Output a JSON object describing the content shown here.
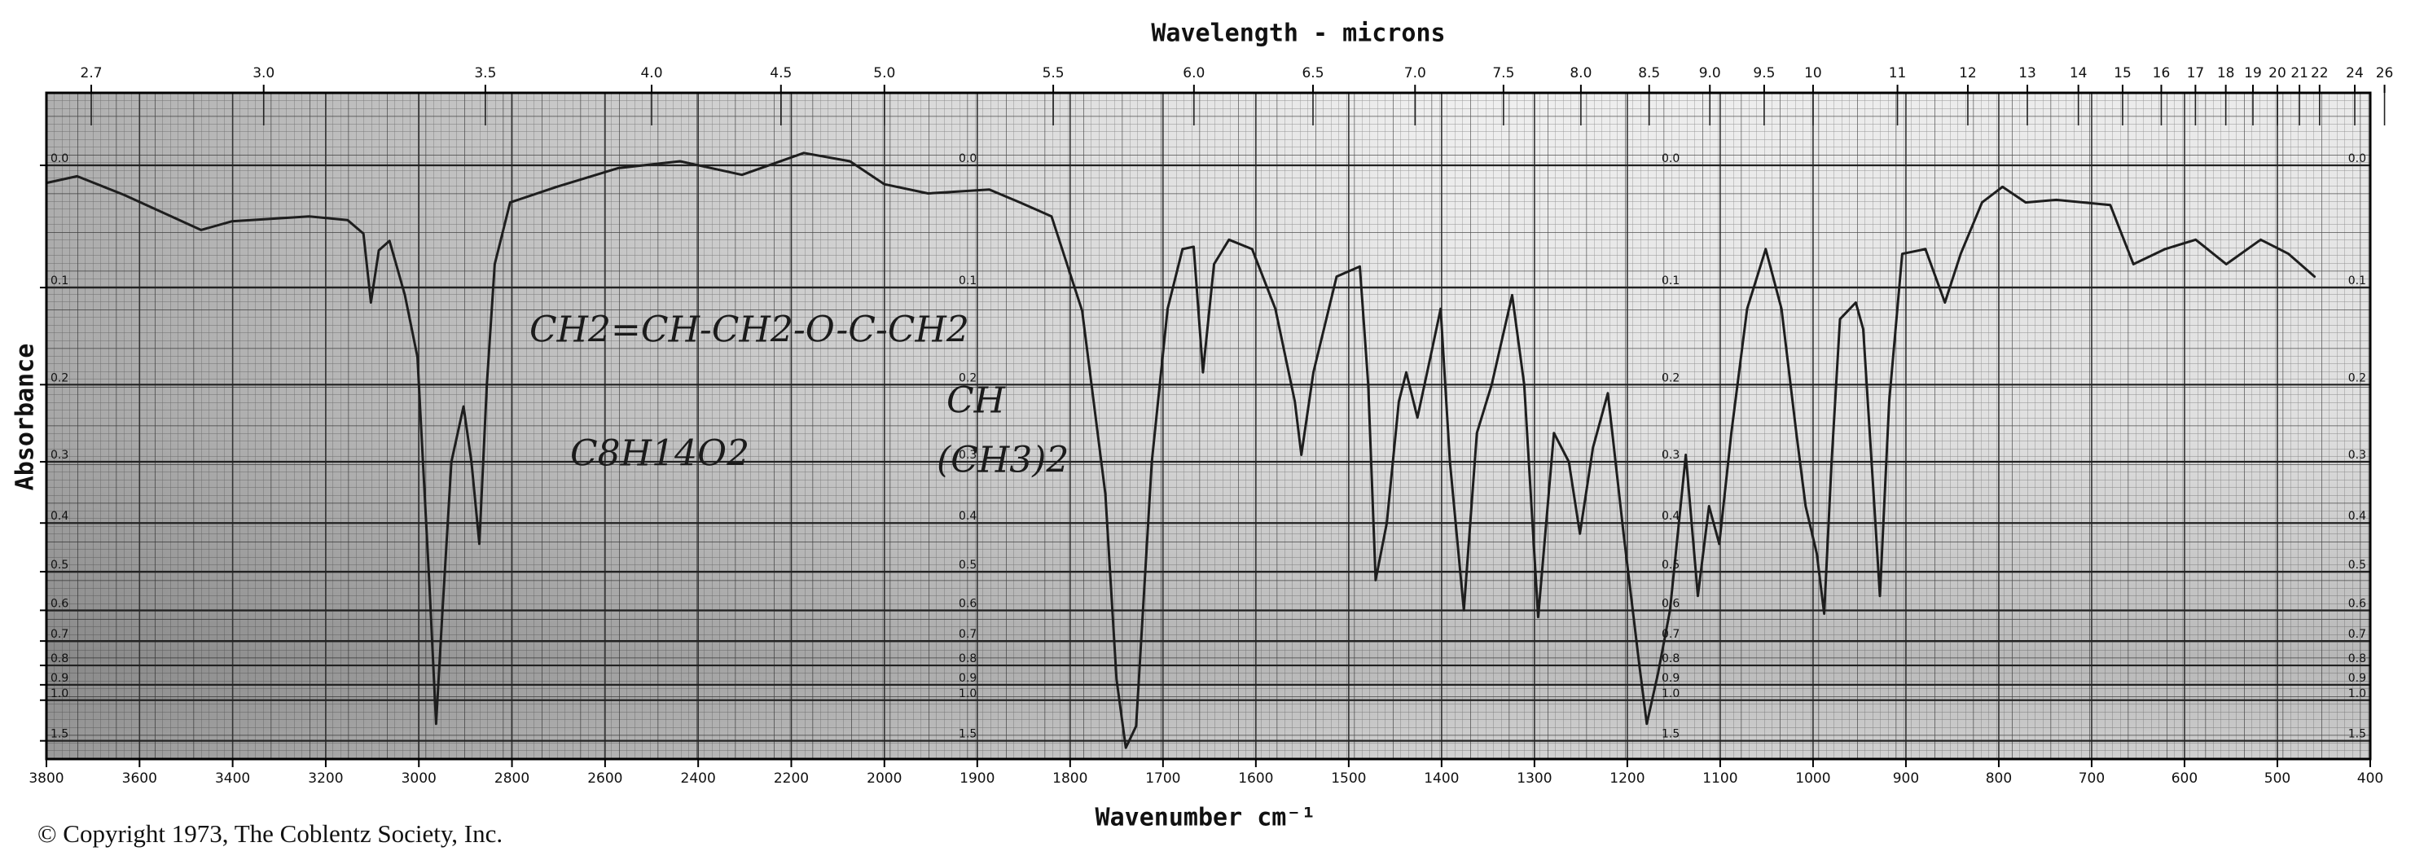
{
  "chart_data": {
    "type": "line",
    "title": "Wavelength - microns",
    "x_label": "Wavenumber cm⁻¹",
    "y_label": "Absorbance",
    "copyright": "© Copyright 1973, The Coblentz Society, Inc.",
    "annotations": [
      "CH2=CH-CH2-O-C-CH2",
      "CH",
      "(CH3)2",
      "C8H14O2"
    ],
    "color": "#1e1e1e",
    "grid": true,
    "y_scale": "transmittance",
    "xlim": [
      3800,
      400
    ],
    "x_break": 2000,
    "ylim": [
      -0.05,
      3
    ],
    "xticks": [
      3800,
      3600,
      3400,
      3200,
      3000,
      2800,
      2600,
      2400,
      2200,
      2000,
      1900,
      1800,
      1700,
      1600,
      1500,
      1400,
      1300,
      1200,
      1100,
      1000,
      900,
      800,
      700,
      600,
      500,
      400
    ],
    "x2ticks": [
      2.7,
      {
        "value": 3,
        "label": "3.0"
      },
      3.5,
      {
        "value": 4,
        "label": "4.0"
      },
      4.5,
      {
        "value": 5,
        "label": "5.0"
      },
      5.5,
      {
        "value": 6,
        "label": "6.0"
      },
      6.5,
      {
        "value": 7,
        "label": "7.0"
      },
      7.5,
      {
        "value": 8,
        "label": "8.0"
      },
      8.5,
      {
        "value": 9,
        "label": "9.0"
      },
      9.5,
      10,
      11,
      12,
      13,
      14,
      15,
      16,
      17,
      18,
      19,
      20,
      21,
      22,
      24,
      26
    ],
    "yticks": [
      {
        "value": 0,
        "label": "0.0"
      },
      0.1,
      0.2,
      0.3,
      0.4,
      0.5,
      0.6,
      0.7,
      0.8,
      0.9,
      {
        "value": 1,
        "label": "1.0"
      },
      1.5
    ],
    "x": [
      3800,
      3734,
      3634,
      3468,
      3402,
      3236,
      3153,
      3119,
      3103,
      3086,
      3063,
      3030,
      3003,
      2977,
      2963,
      2950,
      2930,
      2904,
      2887,
      2870,
      2854,
      2837,
      2804,
      2754,
      2704,
      2572,
      2439,
      2306,
      2173,
      2074,
      2000,
      1953,
      1887,
      1854,
      1820,
      1787,
      1762,
      1750,
      1740,
      1729,
      1712,
      1695,
      1679,
      1667,
      1657,
      1645,
      1629,
      1604,
      1579,
      1558,
      1551,
      1538,
      1513,
      1488,
      1479,
      1471,
      1459,
      1446,
      1438,
      1426,
      1412,
      1401,
      1391,
      1376,
      1362,
      1346,
      1324,
      1311,
      1296,
      1279,
      1263,
      1251,
      1237,
      1221,
      1204,
      1187,
      1179,
      1167,
      1154,
      1137,
      1124,
      1112,
      1101,
      1088,
      1071,
      1051,
      1034,
      1018,
      1008,
      996,
      988,
      980,
      971,
      954,
      946,
      934,
      928,
      918,
      904,
      879,
      858,
      841,
      818,
      796,
      771,
      738,
      680,
      655,
      621,
      588,
      555,
      518,
      488,
      460
    ],
    "values": [
      0.013,
      0.008,
      0.022,
      0.05,
      0.043,
      0.039,
      0.042,
      0.053,
      0.114,
      0.067,
      0.059,
      0.107,
      0.169,
      0.539,
      1.22,
      0.62,
      0.3,
      0.226,
      0.3,
      0.44,
      0.2,
      0.079,
      0.028,
      0.022,
      0.016,
      0.002,
      -0.003,
      0.007,
      -0.009,
      -0.003,
      0.014,
      0.021,
      0.018,
      0.028,
      0.039,
      0.122,
      0.35,
      0.87,
      1.7,
      1.25,
      0.3,
      0.12,
      0.066,
      0.064,
      0.186,
      0.079,
      0.058,
      0.066,
      0.12,
      0.22,
      0.29,
      0.186,
      0.09,
      0.081,
      0.2,
      0.52,
      0.4,
      0.22,
      0.186,
      0.24,
      0.169,
      0.12,
      0.3,
      0.6,
      0.26,
      0.2,
      0.107,
      0.2,
      0.62,
      0.26,
      0.3,
      0.42,
      0.28,
      0.21,
      0.42,
      0.8,
      1.22,
      0.84,
      0.6,
      0.29,
      0.56,
      0.37,
      0.44,
      0.26,
      0.12,
      0.066,
      0.12,
      0.26,
      0.37,
      0.46,
      0.61,
      0.3,
      0.13,
      0.114,
      0.14,
      0.37,
      0.56,
      0.22,
      0.07,
      0.066,
      0.114,
      0.07,
      0.028,
      0.016,
      0.028,
      0.026,
      0.03,
      0.079,
      0.066,
      0.058,
      0.079,
      0.058,
      0.07,
      0.09
    ]
  }
}
